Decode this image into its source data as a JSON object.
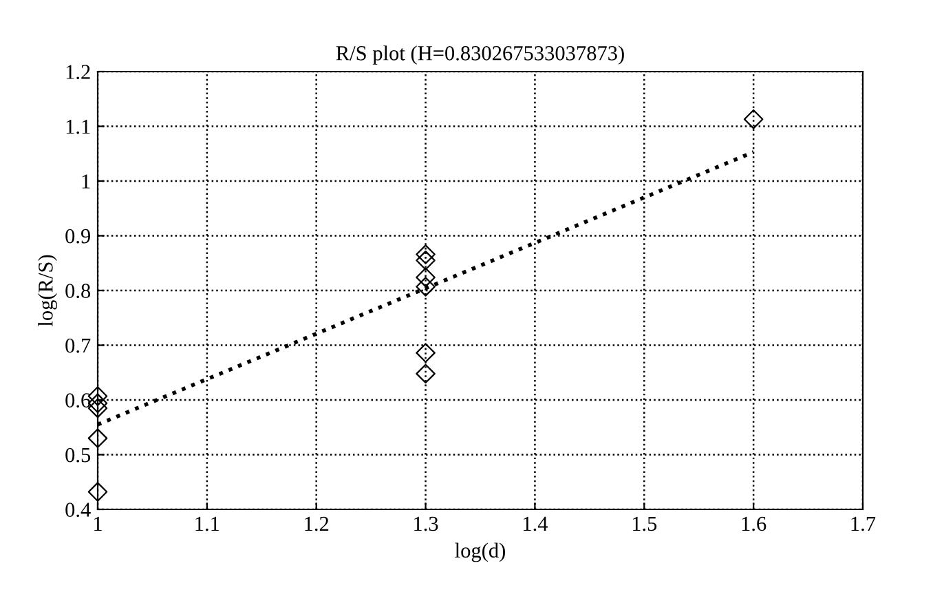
{
  "chart_data": {
    "type": "scatter",
    "title": "R/S plot (H=0.830267533037873)",
    "xlabel": "log(d)",
    "ylabel": "log(R/S)",
    "series": [
      {
        "color": "#000000",
        "marker": "diamond",
        "x": [
          1,
          1,
          1,
          1,
          1,
          1.3,
          1.3,
          1.3,
          1.3,
          1.3,
          1.3,
          1.6
        ],
        "values": [
          0.607,
          0.594,
          0.585,
          0.53,
          0.432,
          0.866,
          0.855,
          0.824,
          0.807,
          0.686,
          0.648,
          1.113
        ]
      },
      {
        "type": "line",
        "color": "#000000",
        "line_style": "dotted",
        "x": [
          1,
          1.6
        ],
        "values": [
          0.555,
          1.053
        ]
      }
    ],
    "xlim": [
      1,
      1.7
    ],
    "xticks": [
      1,
      1.1,
      1.2,
      1.3,
      1.4,
      1.5,
      1.6,
      1.7
    ],
    "ylim": [
      0.4,
      1.2
    ],
    "yticks": [
      0.4,
      0.5,
      0.6,
      0.7,
      0.8,
      0.9,
      1,
      1.1,
      1.2
    ],
    "grid": true
  }
}
